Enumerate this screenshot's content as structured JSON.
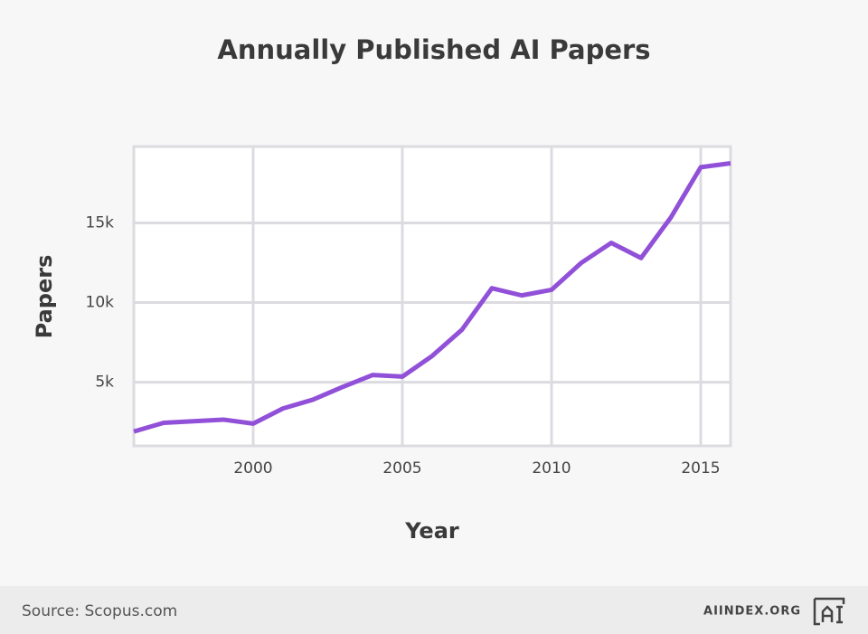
{
  "chart_data": {
    "type": "line",
    "title": "Annually Published AI Papers",
    "x_label": "Year",
    "y_label": "Papers",
    "x": [
      1996,
      1997,
      1998,
      1999,
      2000,
      2001,
      2002,
      2003,
      2004,
      2005,
      2006,
      2007,
      2008,
      2009,
      2010,
      2011,
      2012,
      2013,
      2014,
      2015,
      2016
    ],
    "values": [
      1900,
      2450,
      2550,
      2650,
      2400,
      3350,
      3900,
      4700,
      5450,
      5350,
      6650,
      8300,
      10900,
      10450,
      10800,
      12500,
      13750,
      12800,
      15350,
      18500,
      18750
    ],
    "color": "#9150d8",
    "xlim": [
      1996,
      2016
    ],
    "xticks": [
      2000,
      2005,
      2010,
      2015
    ],
    "ylim": [
      1000,
      19800
    ],
    "yticks": [
      {
        "value": 5000,
        "label": "5k"
      },
      {
        "value": 10000,
        "label": "10k"
      },
      {
        "value": 15000,
        "label": "15k"
      }
    ],
    "grid": true,
    "source": "Source: Scopus.com",
    "credit": "AIINDEX.ORG"
  }
}
